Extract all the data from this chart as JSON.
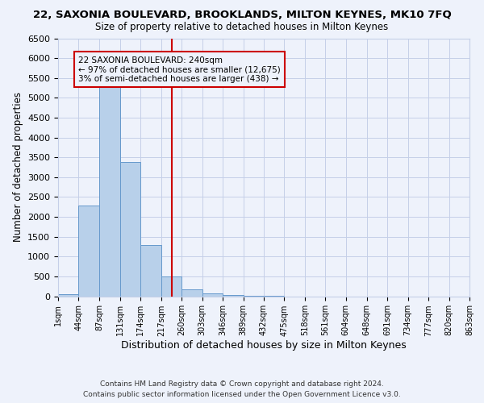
{
  "title": "22, SAXONIA BOULEVARD, BROOKLANDS, MILTON KEYNES, MK10 7FQ",
  "subtitle": "Size of property relative to detached houses in Milton Keynes",
  "xlabel": "Distribution of detached houses by size in Milton Keynes",
  "ylabel": "Number of detached properties",
  "bin_edges": [
    1,
    44,
    87,
    131,
    174,
    217,
    260,
    303,
    346,
    389,
    432,
    475,
    518,
    561,
    604,
    648,
    691,
    734,
    777,
    820,
    863
  ],
  "bar_heights": [
    50,
    2280,
    5430,
    3380,
    1290,
    490,
    175,
    75,
    25,
    10,
    5,
    0,
    0,
    0,
    0,
    0,
    0,
    0,
    0,
    0
  ],
  "bar_color": "#b8d0ea",
  "bar_edgecolor": "#6699cc",
  "vline_x": 240,
  "vline_color": "#cc0000",
  "annotation_text": "22 SAXONIA BOULEVARD: 240sqm\n← 97% of detached houses are smaller (12,675)\n3% of semi-detached houses are larger (438) →",
  "annotation_box_edgecolor": "#cc0000",
  "ylim": [
    0,
    6500
  ],
  "yticks": [
    0,
    500,
    1000,
    1500,
    2000,
    2500,
    3000,
    3500,
    4000,
    4500,
    5000,
    5500,
    6000,
    6500
  ],
  "tick_labels": [
    "1sqm",
    "44sqm",
    "87sqm",
    "131sqm",
    "174sqm",
    "217sqm",
    "260sqm",
    "303sqm",
    "346sqm",
    "389sqm",
    "432sqm",
    "475sqm",
    "518sqm",
    "561sqm",
    "604sqm",
    "648sqm",
    "691sqm",
    "734sqm",
    "777sqm",
    "820sqm",
    "863sqm"
  ],
  "footer_line1": "Contains HM Land Registry data © Crown copyright and database right 2024.",
  "footer_line2": "Contains public sector information licensed under the Open Government Licence v3.0.",
  "bg_color": "#eef2fb",
  "grid_color": "#c5cfe8"
}
